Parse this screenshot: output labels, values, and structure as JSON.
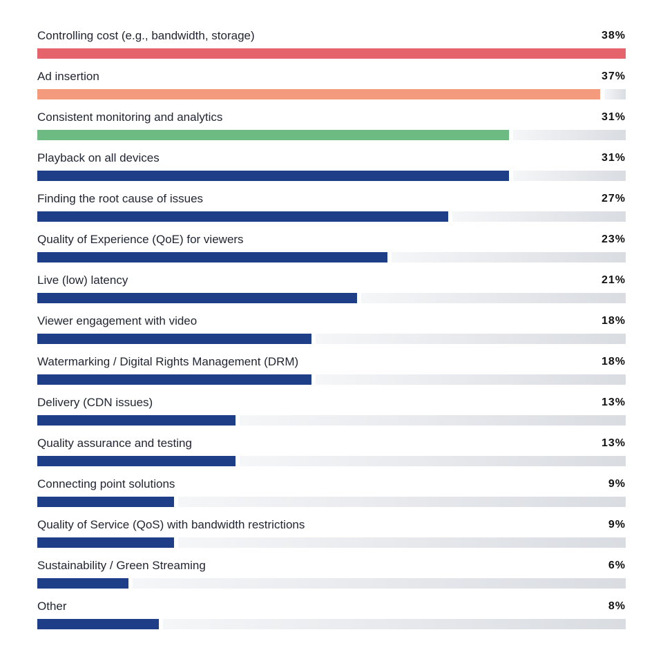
{
  "chart_data": {
    "type": "bar",
    "orientation": "horizontal",
    "title": "",
    "xlabel": "",
    "ylabel": "",
    "xlim": [
      0,
      38
    ],
    "unit": "%",
    "categories": [
      "Controlling cost (e.g., bandwidth, storage)",
      "Ad insertion",
      "Consistent monitoring and analytics",
      "Playback on all devices",
      "Finding the root cause of issues",
      "Quality of Experience (QoE) for viewers",
      "Live (low) latency",
      "Viewer engagement with video",
      "Watermarking / Digital Rights Management (DRM)",
      "Delivery (CDN issues)",
      "Quality assurance and testing",
      "Connecting point solutions",
      "Quality of Service (QoS) with bandwidth restrictions",
      "Sustainability / Green Streaming",
      "Other"
    ],
    "values": [
      38,
      37,
      31,
      31,
      27,
      23,
      21,
      18,
      18,
      13,
      13,
      9,
      9,
      6,
      8
    ],
    "value_labels": [
      "38%",
      "37%",
      "31%",
      "31%",
      "27%",
      "23%",
      "21%",
      "18%",
      "18%",
      "13%",
      "13%",
      "9%",
      "9%",
      "6%",
      "8%"
    ],
    "colors": [
      "#e5636b",
      "#f39b7c",
      "#6dbb82",
      "#1e3f87",
      "#1e3f87",
      "#1e3f87",
      "#1e3f87",
      "#1e3f87",
      "#1e3f87",
      "#1e3f87",
      "#1e3f87",
      "#1e3f87",
      "#1e3f87",
      "#1e3f87",
      "#1e3f87"
    ]
  }
}
